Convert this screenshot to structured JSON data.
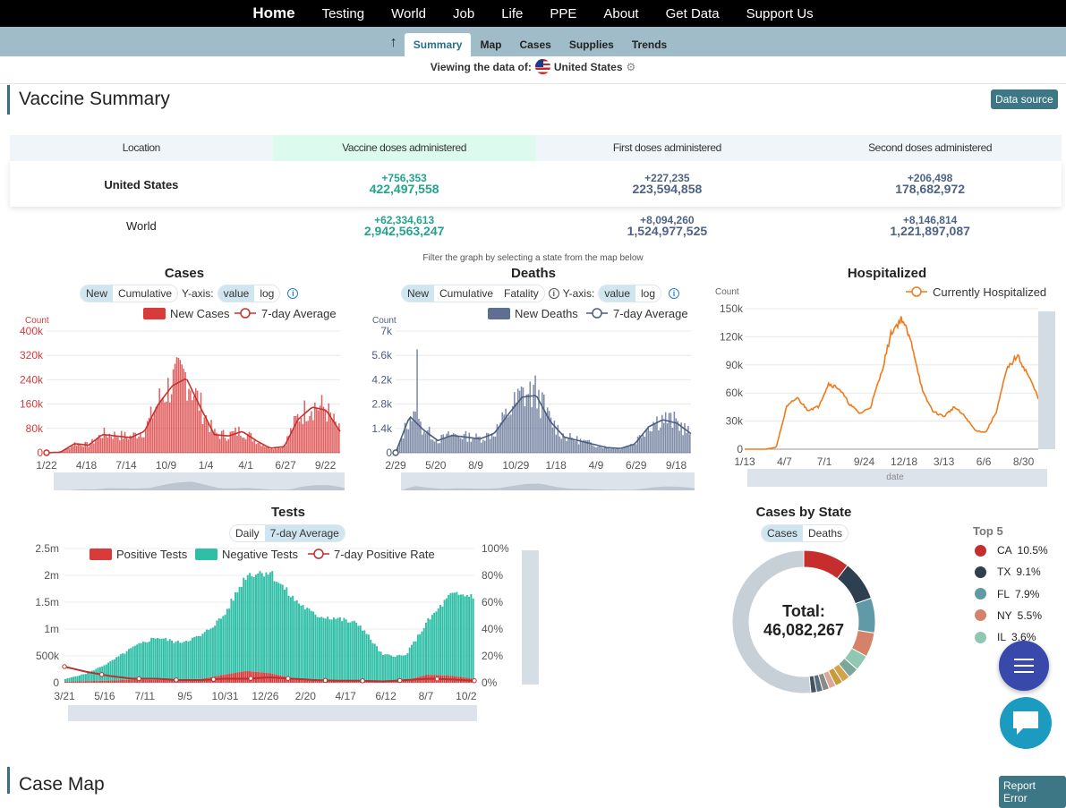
{
  "nav": {
    "items": [
      "Home",
      "Testing",
      "World",
      "Job",
      "Life",
      "PPE",
      "About",
      "Get Data",
      "Support Us"
    ]
  },
  "subnav": {
    "tabs": [
      "Summary",
      "Map",
      "Cases",
      "Supplies",
      "Trends"
    ],
    "active": "Summary"
  },
  "viewing": {
    "label": "Viewing the data of:",
    "place": "United States"
  },
  "vaccine": {
    "title": "Vaccine Summary",
    "source_button": "Data source",
    "columns": [
      "Location",
      "Vaccine doses administered",
      "First doses administered",
      "Second doses administered"
    ],
    "rows": [
      {
        "location": "United States",
        "total_delta": "+756,353",
        "total": "422,497,558",
        "first_delta": "+227,235",
        "first": "223,594,858",
        "second_delta": "+206,498",
        "second": "178,682,972"
      },
      {
        "location": "World",
        "total_delta": "+62,334,613",
        "total": "2,942,563,247",
        "first_delta": "+8,094,260",
        "first": "1,524,977,525",
        "second_delta": "+8,146,814",
        "second": "1,221,897,087"
      }
    ]
  },
  "filter_note": "Filter the graph by selecting a state from the map below",
  "cases_chart": {
    "toggle": [
      "New",
      "Cumulative"
    ],
    "yaxis_label": "Y-axis:",
    "scale": [
      "value",
      "log"
    ],
    "chart_data": {
      "type": "bar",
      "title": "Cases",
      "ylabel": "Count",
      "legend": [
        "New Cases",
        "7-day Average"
      ],
      "x_ticks": [
        "1/22",
        "4/18",
        "7/14",
        "10/9",
        "1/4",
        "4/1",
        "6/27",
        "9/22"
      ],
      "y_ticks": [
        "0",
        "80k",
        "160k",
        "240k",
        "320k",
        "400k"
      ],
      "ylim": [
        0,
        400000
      ],
      "series": [
        {
          "name": "7-day Average",
          "values": [
            0,
            2000,
            30000,
            25000,
            60000,
            55000,
            50000,
            70000,
            160000,
            220000,
            245000,
            150000,
            60000,
            55000,
            70000,
            40000,
            15000,
            20000,
            110000,
            150000,
            140000,
            70000
          ]
        }
      ]
    }
  },
  "deaths_chart": {
    "toggle": [
      "New",
      "Cumulative",
      "Fatality"
    ],
    "yaxis_label": "Y-axis:",
    "scale": [
      "value",
      "log"
    ],
    "chart_data": {
      "type": "bar",
      "title": "Deaths",
      "ylabel": "Count",
      "legend": [
        "New Deaths",
        "7-day Average"
      ],
      "x_ticks": [
        "2/29",
        "5/20",
        "8/9",
        "10/29",
        "1/18",
        "4/9",
        "6/29",
        "9/18"
      ],
      "y_ticks": [
        "0",
        "1.4k",
        "2.8k",
        "4.2k",
        "5.6k",
        "7k"
      ],
      "ylim": [
        0,
        7000
      ],
      "series": [
        {
          "name": "7-day Average",
          "values": [
            0,
            2100,
            1300,
            700,
            1000,
            900,
            800,
            1100,
            2200,
            3200,
            3300,
            1800,
            900,
            700,
            500,
            300,
            250,
            500,
            1500,
            1900,
            1700,
            1100
          ]
        }
      ]
    }
  },
  "hosp_chart": {
    "chart_data": {
      "type": "line",
      "title": "Hospitalized",
      "ylabel": "Count",
      "xlabel": "date",
      "legend": [
        "Currently Hospitalized"
      ],
      "x_ticks": [
        "1/13",
        "4/7",
        "7/1",
        "9/24",
        "12/18",
        "3/13",
        "6/6",
        "8/30"
      ],
      "y_ticks": [
        "0",
        "30k",
        "60k",
        "90k",
        "120k",
        "150k"
      ],
      "ylim": [
        0,
        150000
      ],
      "series": [
        {
          "name": "Currently Hospitalized",
          "values": [
            0,
            0,
            0,
            2000,
            45000,
            55000,
            42000,
            45000,
            70000,
            65000,
            48000,
            38000,
            45000,
            80000,
            125000,
            140000,
            110000,
            60000,
            40000,
            35000,
            45000,
            35000,
            20000,
            18000,
            40000,
            85000,
            100000,
            80000,
            55000
          ]
        }
      ]
    }
  },
  "tests_chart": {
    "toggle": [
      "Daily",
      "7-day Average"
    ],
    "chart_data": {
      "type": "bar",
      "title": "Tests",
      "legend": [
        "Positive Tests",
        "Negative Tests",
        "7-day Positive Rate"
      ],
      "x_ticks": [
        "3/21",
        "5/16",
        "7/11",
        "9/5",
        "10/31",
        "12/26",
        "2/20",
        "4/17",
        "6/12",
        "8/7",
        "10/2"
      ],
      "y_ticks_left": [
        "0",
        "500k",
        "1m",
        "1.5m",
        "2m",
        "2.5m"
      ],
      "y_ticks_right": [
        "0%",
        "20%",
        "40%",
        "60%",
        "80%",
        "100%"
      ],
      "ylim": [
        0,
        2500000
      ],
      "series": [
        {
          "name": "Negative Tests",
          "values": [
            50000,
            150000,
            350000,
            600000,
            800000,
            700000,
            800000,
            1100000,
            1800000,
            1900000,
            1500000,
            1200000,
            1150000,
            1050000,
            500000,
            450000,
            1000000,
            1500000,
            1550000
          ]
        },
        {
          "name": "Positive Tests",
          "values": [
            20000,
            30000,
            40000,
            60000,
            50000,
            50000,
            70000,
            150000,
            220000,
            180000,
            90000,
            60000,
            50000,
            30000,
            15000,
            50000,
            150000,
            130000,
            80000
          ]
        },
        {
          "name": "7-day Positive Rate",
          "values": [
            12,
            8,
            5,
            3,
            3,
            2,
            2,
            3,
            3,
            4,
            3,
            2,
            1.5,
            1.5,
            1,
            2,
            3,
            2.5,
            1.5
          ]
        }
      ]
    }
  },
  "state_chart": {
    "toggle": [
      "Cases",
      "Deaths"
    ],
    "chart_data": {
      "type": "pie",
      "title": "Cases by State",
      "center_label": "Total:",
      "center_value": "46,082,267",
      "legend_title": "Top 5",
      "slices": [
        {
          "name": "CA",
          "label": "10.5%",
          "value": 10.5,
          "color": "#c62e2e"
        },
        {
          "name": "TX",
          "label": "9.1%",
          "value": 9.1,
          "color": "#2e3f4f"
        },
        {
          "name": "FL",
          "label": "7.9%",
          "value": 7.9,
          "color": "#5f9aa6"
        },
        {
          "name": "NY",
          "label": "5.5%",
          "value": 5.5,
          "color": "#d4826a"
        },
        {
          "name": "IL",
          "label": "3.6%",
          "value": 3.6,
          "color": "#8fc7b0"
        }
      ],
      "other_colors": [
        "#7ba69a",
        "#d4a24a",
        "#c79a3a",
        "#d8a99a",
        "#8a8a8a",
        "#5a6e7d",
        "#43525e"
      ],
      "remainder_color": "#c7d0d6"
    }
  },
  "case_map": {
    "title": "Case Map",
    "report_button": "Report Error"
  },
  "colors": {
    "accent": "#3d7684",
    "case_red": "#d93a3a",
    "death_blue": "#5e6f92",
    "hosp_orange": "#f07a1a",
    "neg_green": "#2fbfa6"
  }
}
